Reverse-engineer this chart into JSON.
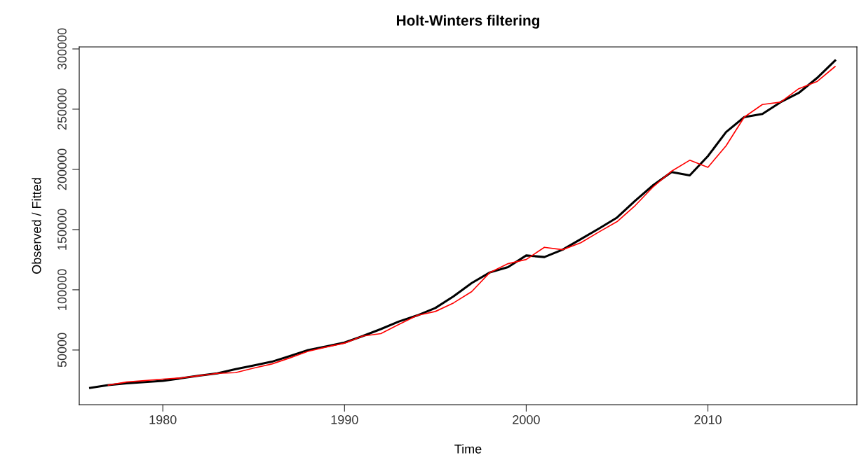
{
  "chart_data": {
    "type": "line",
    "title": "Holt-Winters filtering",
    "xlabel": "Time",
    "ylabel": "Observed / Fitted",
    "xlim": [
      1975.4,
      2018.2
    ],
    "xticks": [
      1980,
      1990,
      2000,
      2010
    ],
    "ylim": [
      4600,
      301700
    ],
    "yticks": [
      50000,
      100000,
      150000,
      200000,
      250000,
      300000
    ],
    "grid": false,
    "legend": false,
    "marker": "none",
    "line_style": "solid",
    "series": [
      {
        "color": "#000000",
        "x": [
          1976,
          1977,
          1978,
          1979,
          1980,
          1981,
          1982,
          1983,
          1984,
          1985,
          1986,
          1987,
          1988,
          1989,
          1990,
          1991,
          1992,
          1993,
          1994,
          1995,
          1996,
          1997,
          1998,
          1999,
          2000,
          2001,
          2002,
          2003,
          2004,
          2005,
          2006,
          2007,
          2008,
          2009,
          2010,
          2011,
          2012,
          2013,
          2014,
          2015,
          2016,
          2017
        ],
        "values": [
          18600,
          20900,
          22300,
          23300,
          24400,
          26500,
          28700,
          30600,
          34100,
          37200,
          40300,
          45000,
          50000,
          53000,
          56200,
          61600,
          67400,
          73700,
          78700,
          84900,
          94600,
          105600,
          114400,
          118800,
          128500,
          127200,
          133300,
          142000,
          150800,
          160000,
          174000,
          187000,
          197800,
          195000,
          211000,
          231000,
          243400,
          246000,
          255800,
          263500,
          275800,
          290400
        ]
      },
      {
        "color": "#ff0000",
        "x": [
          1977,
          1978,
          1979,
          1980,
          1981,
          1982,
          1983,
          1984,
          1985,
          1986,
          1987,
          1988,
          1989,
          1990,
          1991,
          1992,
          1993,
          1994,
          1995,
          1996,
          1997,
          1998,
          1999,
          2000,
          2001,
          2002,
          2003,
          2004,
          2005,
          2006,
          2007,
          2008,
          2009,
          2010,
          2011,
          2012,
          2013,
          2014,
          2015,
          2016,
          2017
        ],
        "values": [
          20900,
          23400,
          24600,
          25800,
          26800,
          28700,
          30600,
          31200,
          35000,
          38400,
          43500,
          48900,
          52500,
          55700,
          61600,
          63600,
          71300,
          78700,
          82000,
          89100,
          98500,
          114400,
          121700,
          125200,
          135300,
          133300,
          139000,
          148000,
          156600,
          170000,
          185700,
          198500,
          207600,
          201700,
          219600,
          243400,
          253900,
          255800,
          267000,
          272900,
          285400
        ]
      }
    ]
  }
}
